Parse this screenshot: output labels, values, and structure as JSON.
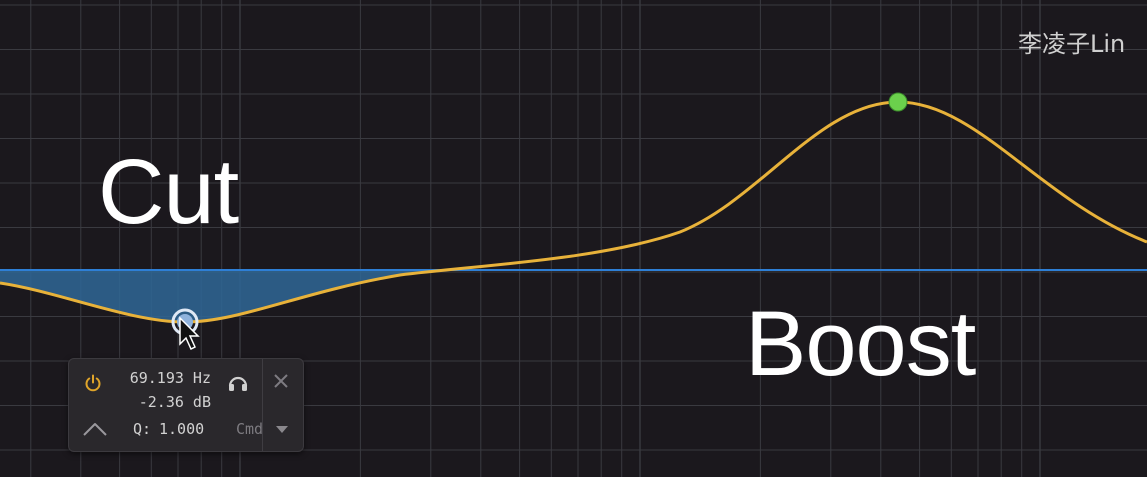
{
  "labels": {
    "cut": "Cut",
    "boost": "Boost"
  },
  "watermark": "李凌子Lin",
  "band_panel": {
    "frequency": "69.193 Hz",
    "gain": "-2.36 dB",
    "q_label": "Q:",
    "q_value": "1.000",
    "modifier_hint": "Cmd",
    "icons": [
      "power-icon",
      "bell-shape-icon",
      "headphones-icon",
      "close-icon",
      "dropdown-arrow-icon"
    ]
  },
  "colors": {
    "background": "#1b181d",
    "grid": "#3a3a40",
    "zero_line": "#2e7fd6",
    "curve": "#e8b23a",
    "cut_fill": "#2f6796",
    "boost_node": "#6bd04c",
    "cut_node": "#8fb2dc",
    "power_icon": "#e0a52a"
  }
}
